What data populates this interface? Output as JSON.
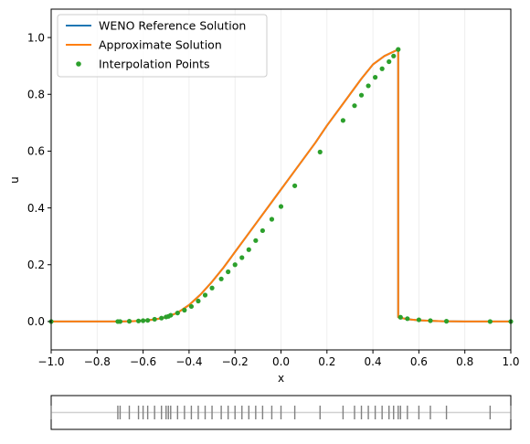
{
  "chart_data": [
    {
      "type": "line",
      "title": "",
      "xlabel": "x",
      "ylabel": "u",
      "xlim": [
        -1.0,
        1.0
      ],
      "ylim": [
        -0.1,
        1.1
      ],
      "grid": "vertical-only, light",
      "legend_position": "top-left",
      "xticks": [
        -1.0,
        -0.8,
        -0.6,
        -0.4,
        -0.2,
        0.0,
        0.2,
        0.4,
        0.6,
        0.8,
        1.0
      ],
      "xtick_labels": [
        "−1.0",
        "−0.8",
        "−0.6",
        "−0.4",
        "−0.2",
        "0.0",
        "0.2",
        "0.4",
        "0.6",
        "0.8",
        "1.0"
      ],
      "yticks": [
        0.0,
        0.2,
        0.4,
        0.6,
        0.8,
        1.0
      ],
      "ytick_labels": [
        "0.0",
        "0.2",
        "0.4",
        "0.6",
        "0.8",
        "1.0"
      ],
      "series": [
        {
          "name": "WENO Reference Solution",
          "kind": "line",
          "color": "#1f77b4",
          "x": [
            -1.0,
            -0.7,
            -0.65,
            -0.6,
            -0.55,
            -0.5,
            -0.45,
            -0.4,
            -0.35,
            -0.3,
            -0.25,
            -0.2,
            -0.15,
            -0.1,
            -0.05,
            0.0,
            0.05,
            0.1,
            0.15,
            0.2,
            0.25,
            0.3,
            0.35,
            0.4,
            0.45,
            0.51,
            0.51,
            0.55,
            0.6,
            0.7,
            0.8,
            1.0
          ],
          "y": [
            0.0,
            0.0,
            0.001,
            0.003,
            0.007,
            0.015,
            0.031,
            0.058,
            0.095,
            0.14,
            0.19,
            0.245,
            0.3,
            0.355,
            0.41,
            0.465,
            0.52,
            0.575,
            0.63,
            0.69,
            0.745,
            0.8,
            0.855,
            0.905,
            0.935,
            0.958,
            0.015,
            0.008,
            0.004,
            0.001,
            0.0,
            0.0
          ]
        },
        {
          "name": "Approximate Solution",
          "kind": "line",
          "color": "#ff7f0e",
          "x": [
            -1.0,
            -0.7,
            -0.65,
            -0.6,
            -0.55,
            -0.5,
            -0.45,
            -0.4,
            -0.35,
            -0.3,
            -0.25,
            -0.2,
            -0.15,
            -0.1,
            -0.05,
            0.0,
            0.05,
            0.1,
            0.15,
            0.2,
            0.25,
            0.3,
            0.35,
            0.4,
            0.45,
            0.51,
            0.51,
            0.55,
            0.6,
            0.7,
            0.8,
            1.0
          ],
          "y": [
            0.0,
            0.0,
            0.001,
            0.003,
            0.007,
            0.015,
            0.031,
            0.058,
            0.095,
            0.14,
            0.19,
            0.245,
            0.3,
            0.355,
            0.41,
            0.465,
            0.52,
            0.575,
            0.63,
            0.69,
            0.745,
            0.8,
            0.855,
            0.905,
            0.935,
            0.958,
            0.015,
            0.008,
            0.004,
            0.001,
            0.0,
            0.0
          ]
        },
        {
          "name": "Interpolation Points",
          "kind": "scatter",
          "color": "#2ca02c",
          "x": [
            -1.0,
            -0.71,
            -0.7,
            -0.66,
            -0.62,
            -0.6,
            -0.58,
            -0.55,
            -0.52,
            -0.5,
            -0.49,
            -0.48,
            -0.45,
            -0.42,
            -0.39,
            -0.36,
            -0.33,
            -0.3,
            -0.26,
            -0.23,
            -0.2,
            -0.17,
            -0.14,
            -0.11,
            -0.08,
            -0.04,
            0.0,
            0.06,
            0.17,
            0.27,
            0.32,
            0.35,
            0.38,
            0.41,
            0.44,
            0.47,
            0.49,
            0.51,
            0.52,
            0.55,
            0.6,
            0.65,
            0.72,
            0.91,
            1.0
          ],
          "y": [
            0.0,
            0.0,
            0.0,
            0.001,
            0.002,
            0.003,
            0.004,
            0.008,
            0.012,
            0.016,
            0.018,
            0.022,
            0.03,
            0.04,
            0.053,
            0.072,
            0.093,
            0.118,
            0.15,
            0.175,
            0.2,
            0.225,
            0.253,
            0.285,
            0.32,
            0.36,
            0.405,
            0.478,
            0.597,
            0.708,
            0.76,
            0.797,
            0.83,
            0.86,
            0.89,
            0.915,
            0.935,
            0.958,
            0.015,
            0.01,
            0.006,
            0.003,
            0.001,
            0.0,
            0.0
          ]
        }
      ]
    },
    {
      "type": "scatter",
      "title": "",
      "xlabel": "",
      "ylabel": "",
      "xlim": [
        -1.0,
        1.0
      ],
      "grid": "off",
      "description_of_marks": "tick marks at interpolation point locations on a horizontal baseline",
      "color": "#808080",
      "x": [
        -1.0,
        -0.71,
        -0.7,
        -0.66,
        -0.62,
        -0.6,
        -0.58,
        -0.55,
        -0.52,
        -0.5,
        -0.49,
        -0.48,
        -0.45,
        -0.42,
        -0.39,
        -0.36,
        -0.33,
        -0.3,
        -0.26,
        -0.23,
        -0.2,
        -0.17,
        -0.14,
        -0.11,
        -0.08,
        -0.04,
        0.0,
        0.06,
        0.17,
        0.27,
        0.32,
        0.35,
        0.38,
        0.41,
        0.44,
        0.47,
        0.49,
        0.51,
        0.52,
        0.55,
        0.6,
        0.65,
        0.72,
        0.91,
        1.0
      ]
    }
  ]
}
